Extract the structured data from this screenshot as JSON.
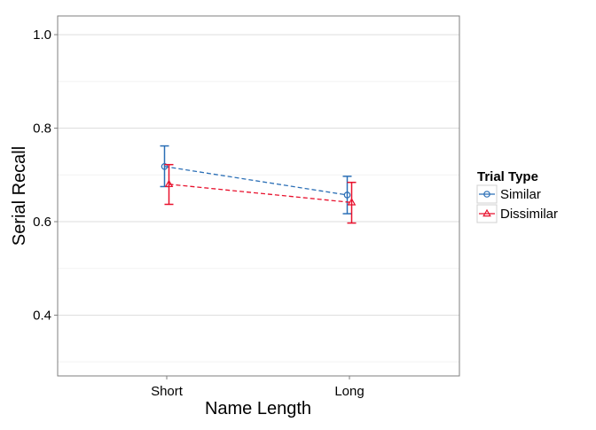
{
  "chart_data": {
    "type": "line",
    "xlabel": "Name Length",
    "ylabel": "Serial Recall",
    "categories": [
      "Short",
      "Long"
    ],
    "ylim": [
      0.27,
      1.04
    ],
    "yticks": [
      0.4,
      0.6,
      0.8,
      1.0
    ],
    "ytick_labels": [
      "0.4",
      "0.6",
      "0.8",
      "1.0"
    ],
    "grid": true,
    "legend": {
      "title": "Trial Type",
      "position": "right"
    },
    "series": [
      {
        "name": "Similar",
        "color": "#2b6fb6",
        "marker": "circle",
        "linestyle": "dashed",
        "values": [
          0.718,
          0.657
        ],
        "error_low": [
          0.675,
          0.617
        ],
        "error_high": [
          0.762,
          0.697
        ]
      },
      {
        "name": "Dissimilar",
        "color": "#e8112d",
        "marker": "triangle",
        "linestyle": "dashed",
        "values": [
          0.68,
          0.641
        ],
        "error_low": [
          0.637,
          0.597
        ],
        "error_high": [
          0.722,
          0.684
        ]
      }
    ]
  }
}
